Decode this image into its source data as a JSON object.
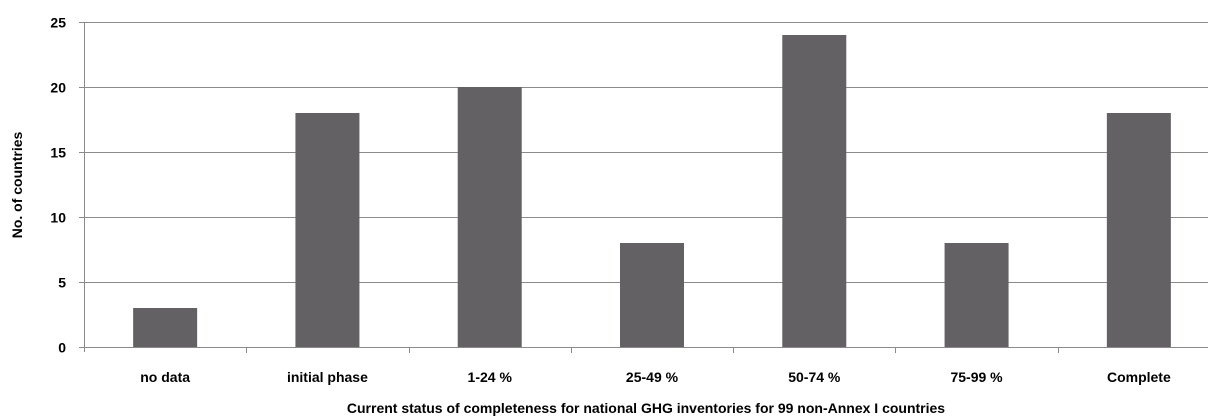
{
  "chart_data": {
    "type": "bar",
    "title": "",
    "xlabel": "Current status of completeness for national GHG inventories for  99 non-Annex I countries",
    "ylabel": "No. of countries",
    "categories": [
      "no data",
      "initial phase",
      "1-24 %",
      "25-49 %",
      "50-74 %",
      "75-99 %",
      "Complete"
    ],
    "series": [
      {
        "values": [
          3,
          18,
          20,
          8,
          24,
          8,
          18
        ]
      }
    ],
    "ylim": [
      0,
      25
    ],
    "yticks": [
      0,
      5,
      10,
      15,
      20,
      25
    ],
    "grid": true,
    "legend": "none",
    "colors": {
      "bar": "#636164",
      "grid": "#8a8a8a",
      "axis": "#8a8a8a",
      "text": "#000000"
    }
  }
}
